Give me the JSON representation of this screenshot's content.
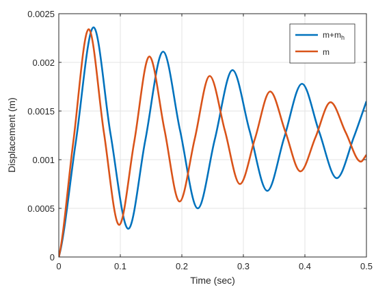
{
  "chart_data": {
    "type": "line",
    "xlabel": "Time (sec)",
    "ylabel": "Displacement (m)",
    "xlim": [
      0,
      0.5
    ],
    "ylim": [
      0,
      0.0025
    ],
    "grid": true,
    "legend_position": "top-right",
    "x_ticks": [
      "0",
      "0.1",
      "0.2",
      "0.3",
      "0.4",
      "0.5"
    ],
    "y_ticks": [
      "0",
      "0.0005",
      "0.001",
      "0.0015",
      "0.002",
      "0.0025"
    ],
    "series": [
      {
        "name": "m+m",
        "name_subscript": "h",
        "color": "#0072BD",
        "x": [
          0,
          0.0276,
          0.0565,
          0.0842,
          0.113,
          0.1406,
          0.1695,
          0.1971,
          0.2259,
          0.2536,
          0.2824,
          0.31,
          0.3389,
          0.3665,
          0.3953,
          0.423,
          0.4518,
          0.4794,
          0.5
        ],
        "y": [
          0,
          0.00118,
          0.00236,
          0.00126,
          0.00029,
          0.0012,
          0.00211,
          0.0013,
          0.0005,
          0.00121,
          0.00192,
          0.0013,
          0.00068,
          0.00123,
          0.00178,
          0.00129,
          0.00081,
          0.00123,
          0.0016
        ]
      },
      {
        "name": "m",
        "color": "#D95319",
        "x": [
          0,
          0.0235,
          0.0486,
          0.0733,
          0.0981,
          0.1225,
          0.1472,
          0.1717,
          0.1963,
          0.2208,
          0.2453,
          0.2699,
          0.2944,
          0.319,
          0.3435,
          0.3681,
          0.3927,
          0.4172,
          0.4417,
          0.4663,
          0.4908,
          0.5
        ],
        "y": [
          0,
          0.00118,
          0.00234,
          0.00128,
          0.00033,
          0.00118,
          0.00206,
          0.00131,
          0.00057,
          0.00121,
          0.00186,
          0.0013,
          0.00075,
          0.00122,
          0.0017,
          0.00129,
          0.00088,
          0.00123,
          0.00159,
          0.00128,
          0.00098,
          0.00105
        ]
      }
    ]
  }
}
